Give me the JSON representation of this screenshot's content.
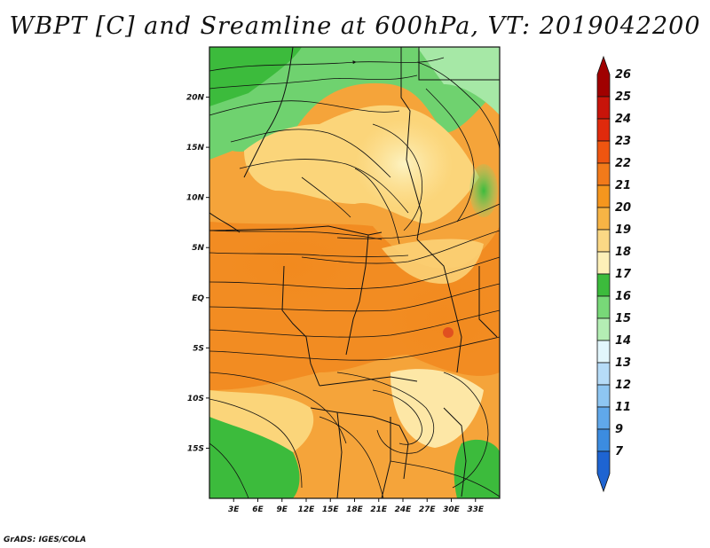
{
  "title": "WBPT [C] and Sreamline at 600hPa, VT: 2019042200",
  "footer": "GrADS: IGES/COLA",
  "map": {
    "variable": "WBPT",
    "units": "C",
    "level": "600hPa",
    "lon_range": [
      0,
      36
    ],
    "lat_range": [
      -20,
      25
    ],
    "lat_ticks": [
      {
        "value": 20,
        "label": "20N"
      },
      {
        "value": 15,
        "label": "15N"
      },
      {
        "value": 10,
        "label": "10N"
      },
      {
        "value": 5,
        "label": "5N"
      },
      {
        "value": 0,
        "label": "EQ"
      },
      {
        "value": -5,
        "label": "5S"
      },
      {
        "value": -10,
        "label": "10S"
      },
      {
        "value": -15,
        "label": "15S"
      }
    ],
    "lon_ticks": [
      {
        "value": 3,
        "label": "3E"
      },
      {
        "value": 6,
        "label": "6E"
      },
      {
        "value": 9,
        "label": "9E"
      },
      {
        "value": 12,
        "label": "12E"
      },
      {
        "value": 15,
        "label": "15E"
      },
      {
        "value": 18,
        "label": "18E"
      },
      {
        "value": 21,
        "label": "21E"
      },
      {
        "value": 24,
        "label": "24E"
      },
      {
        "value": 27,
        "label": "27E"
      },
      {
        "value": 30,
        "label": "30E"
      },
      {
        "value": 33,
        "label": "33E"
      }
    ]
  },
  "colorbar": {
    "labels": [
      "26",
      "25",
      "24",
      "23",
      "22",
      "21",
      "20",
      "19",
      "18",
      "17",
      "16",
      "15",
      "14",
      "13",
      "12",
      "11",
      "9",
      "7"
    ],
    "colors": [
      "#a00000",
      "#c8140a",
      "#e02a0c",
      "#ee5510",
      "#f27a1a",
      "#f5961e",
      "#f7b445",
      "#fbd885",
      "#fdf0b8",
      "#3cbb3c",
      "#78d878",
      "#b4eeb4",
      "#e2f6fc",
      "#b6dcf8",
      "#8ec6f2",
      "#60a8ea",
      "#3c8ce0",
      "#1e64d2"
    ]
  }
}
